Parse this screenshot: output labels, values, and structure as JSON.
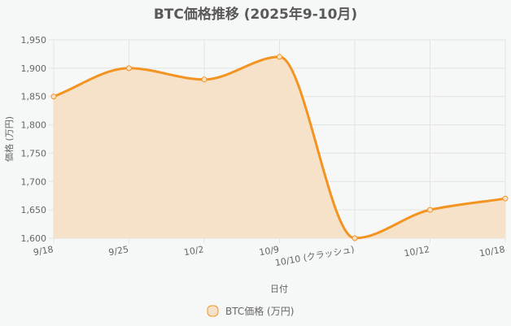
{
  "chart_data": {
    "type": "area",
    "title": "BTC価格推移 (2025年9-10月)",
    "xlabel": "日付",
    "ylabel": "価格 (万円)",
    "categories": [
      "9/18",
      "9/25",
      "10/2",
      "10/9",
      "10/10 (クラッシュ)",
      "10/12",
      "10/18"
    ],
    "series": [
      {
        "name": "BTC価格 (万円)",
        "values": [
          1850,
          1900,
          1880,
          1920,
          1600,
          1650,
          1670
        ],
        "color": "#f39422",
        "fill": "#f5e2c9"
      }
    ],
    "ylim": [
      1600,
      1950
    ],
    "yticks": [
      "1,600",
      "1,650",
      "1,700",
      "1,750",
      "1,800",
      "1,850",
      "1,900",
      "1,950"
    ],
    "grid": true,
    "legend": "bottom"
  }
}
